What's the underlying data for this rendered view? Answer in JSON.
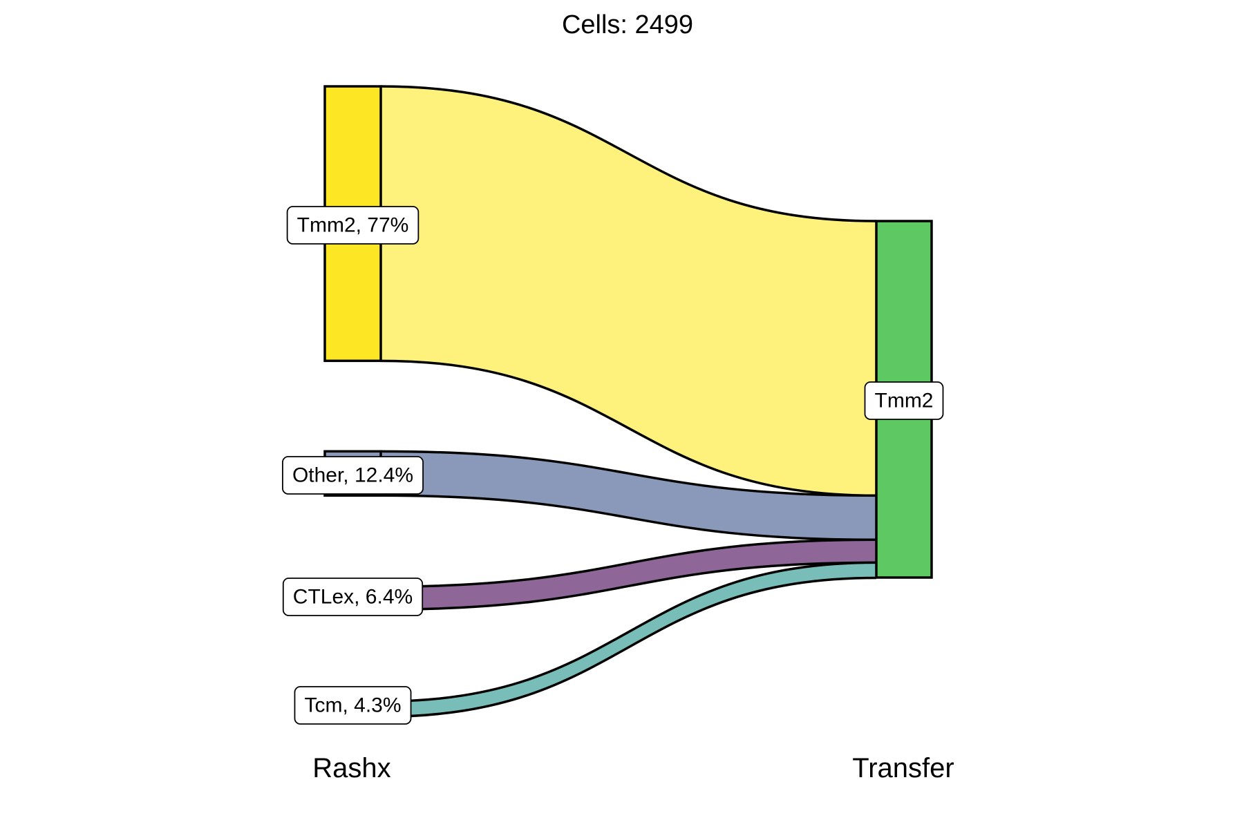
{
  "chart_data": {
    "type": "sankey",
    "title": "Cells:  2499",
    "total_cells": 2499,
    "axes": [
      "Rashx",
      "Transfer"
    ],
    "sources": [
      {
        "name": "Tmm2",
        "percent": 77.0,
        "label": "Tmm2, 77%",
        "color": "#fde725",
        "flow_color": "#fef17c"
      },
      {
        "name": "Other",
        "percent": 12.4,
        "label": "Other, 12.4%",
        "color": "#8a99b9",
        "flow_color": "#8a99b9"
      },
      {
        "name": "CTLex",
        "percent": 6.4,
        "label": "CTLex, 6.4%",
        "color": "#8e6698",
        "flow_color": "#8e6698"
      },
      {
        "name": "Tcm",
        "percent": 4.3,
        "label": "Tcm, 4.3%",
        "color": "#78bdb8",
        "flow_color": "#78bdb8"
      }
    ],
    "targets": [
      {
        "name": "Tmm2",
        "percent": 100.0,
        "label": "Tmm2",
        "color": "#5ec962"
      }
    ],
    "flows": [
      {
        "from": "Tmm2",
        "to": "Tmm2",
        "percent": 77.0
      },
      {
        "from": "Other",
        "to": "Tmm2",
        "percent": 12.4
      },
      {
        "from": "CTLex",
        "to": "Tmm2",
        "percent": 6.4
      },
      {
        "from": "Tcm",
        "to": "Tmm2",
        "percent": 4.3
      }
    ],
    "grid": false,
    "legend": "none"
  }
}
